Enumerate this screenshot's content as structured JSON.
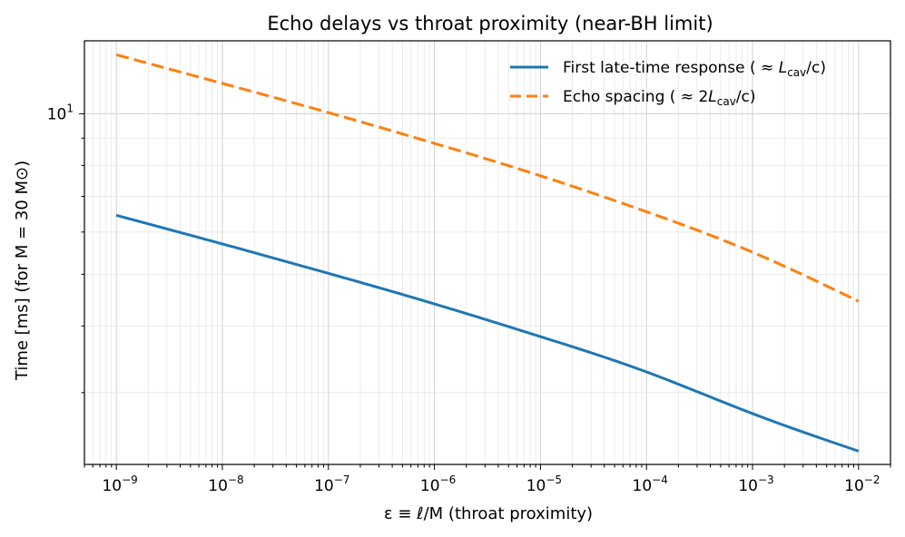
{
  "chart_data": {
    "type": "line",
    "title": "Echo delays vs throat proximity (near-BH limit)",
    "xlabel": "ε ≡ ℓ/M  (throat proximity)",
    "ylabel": "Time [ms]  (for M = 30 M⊙)",
    "xscale": "log",
    "yscale": "log",
    "xlim": [
      5e-10,
      0.02
    ],
    "ylim": [
      2.2,
      13.7
    ],
    "grid": true,
    "legend_position": "top-right",
    "x_ticks": [
      {
        "value": 1e-09,
        "base": "10",
        "exp": "−9"
      },
      {
        "value": 1e-08,
        "base": "10",
        "exp": "−8"
      },
      {
        "value": 1e-07,
        "base": "10",
        "exp": "−7"
      },
      {
        "value": 1e-06,
        "base": "10",
        "exp": "−6"
      },
      {
        "value": 1e-05,
        "base": "10",
        "exp": "−5"
      },
      {
        "value": 0.0001,
        "base": "10",
        "exp": "−4"
      },
      {
        "value": 0.001,
        "base": "10",
        "exp": "−3"
      },
      {
        "value": 0.01,
        "base": "10",
        "exp": "−2"
      }
    ],
    "y_ticks": [
      {
        "value": 10,
        "base": "10",
        "exp": "1"
      }
    ],
    "x": [
      1e-09,
      1e-08,
      1e-07,
      1e-06,
      1e-05,
      0.0001,
      0.001,
      0.01
    ],
    "series": [
      {
        "name": "First late-time response  (≈ L_cav/c)",
        "legend_main": "First late-time response  ( ≈ ",
        "legend_sym": "L",
        "legend_sub": "cav",
        "legend_end": "/c)",
        "color": "#1f77b4",
        "style": "solid",
        "values": [
          6.45,
          5.7,
          5.02,
          4.4,
          3.82,
          3.28,
          2.74,
          2.33
        ]
      },
      {
        "name": "Echo spacing  (≈ 2L_cav/c)",
        "legend_main": "Echo spacing  ( ≈ 2",
        "legend_sym": "L",
        "legend_sub": "cav",
        "legend_end": "/c)",
        "color": "#ff7f0e",
        "style": "dashed",
        "values": [
          12.9,
          11.4,
          10.05,
          8.8,
          7.65,
          6.55,
          5.5,
          4.45
        ]
      }
    ]
  }
}
